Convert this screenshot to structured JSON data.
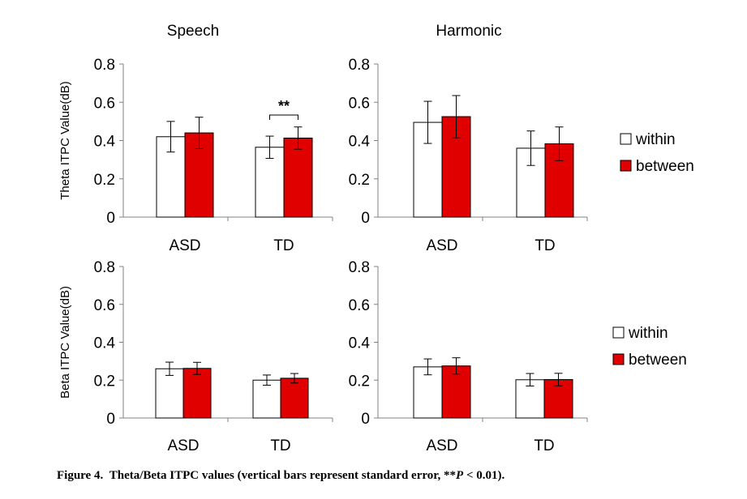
{
  "colors": {
    "within": "#ffffff",
    "between": "#e00000",
    "axis": "#808080",
    "bar_border": "#000000"
  },
  "chart_data": [
    {
      "type": "bar",
      "title": "Speech",
      "ylabel": "Theta ITPC Value(dB)",
      "ylim": [
        0,
        0.8
      ],
      "ytick_labels": [
        "0",
        "0.2",
        "0.4",
        "0.6",
        "0.8"
      ],
      "categories": [
        "ASD",
        "TD"
      ],
      "series": [
        {
          "name": "within",
          "values": [
            0.42,
            0.365
          ],
          "errors": [
            0.08,
            0.058
          ]
        },
        {
          "name": "between",
          "values": [
            0.44,
            0.413
          ],
          "errors": [
            0.082,
            0.058
          ]
        }
      ],
      "annotation": {
        "text": "**",
        "category": "TD"
      },
      "grid": false
    },
    {
      "type": "bar",
      "title": "Harmonic",
      "ylabel": "",
      "ylim": [
        0,
        0.8
      ],
      "ytick_labels": [
        "0",
        "0.2",
        "0.4",
        "0.6",
        "0.8"
      ],
      "categories": [
        "ASD",
        "TD"
      ],
      "series": [
        {
          "name": "within",
          "values": [
            0.495,
            0.36
          ],
          "errors": [
            0.11,
            0.09
          ]
        },
        {
          "name": "between",
          "values": [
            0.525,
            0.383
          ],
          "errors": [
            0.11,
            0.088
          ]
        }
      ],
      "legend": {
        "placement": "right",
        "items": [
          "within",
          "between"
        ]
      },
      "grid": false
    },
    {
      "type": "bar",
      "title": "",
      "ylabel": "Beta ITPC Value(dB)",
      "ylim": [
        0,
        0.8
      ],
      "ytick_labels": [
        "0",
        "0.2",
        "0.4",
        "0.6",
        "0.8"
      ],
      "categories": [
        "ASD",
        "TD"
      ],
      "series": [
        {
          "name": "within",
          "values": [
            0.26,
            0.2
          ],
          "errors": [
            0.035,
            0.027
          ]
        },
        {
          "name": "between",
          "values": [
            0.262,
            0.21
          ],
          "errors": [
            0.032,
            0.025
          ]
        }
      ],
      "grid": false
    },
    {
      "type": "bar",
      "title": "",
      "ylabel": "",
      "ylim": [
        0,
        0.8
      ],
      "ytick_labels": [
        "0",
        "0.2",
        "0.4",
        "0.6",
        "0.8"
      ],
      "categories": [
        "ASD",
        "TD"
      ],
      "series": [
        {
          "name": "within",
          "values": [
            0.27,
            0.202
          ],
          "errors": [
            0.042,
            0.033
          ]
        },
        {
          "name": "between",
          "values": [
            0.275,
            0.203
          ],
          "errors": [
            0.043,
            0.033
          ]
        }
      ],
      "legend": {
        "placement": "right",
        "items": [
          "within",
          "between"
        ]
      },
      "grid": false
    }
  ],
  "caption": {
    "label": "Figure 4.",
    "text": "Theta/Beta ITPC values (vertical bars represent standard error, **",
    "p_symbol": "P",
    "p_rest": " < 0.01)."
  }
}
